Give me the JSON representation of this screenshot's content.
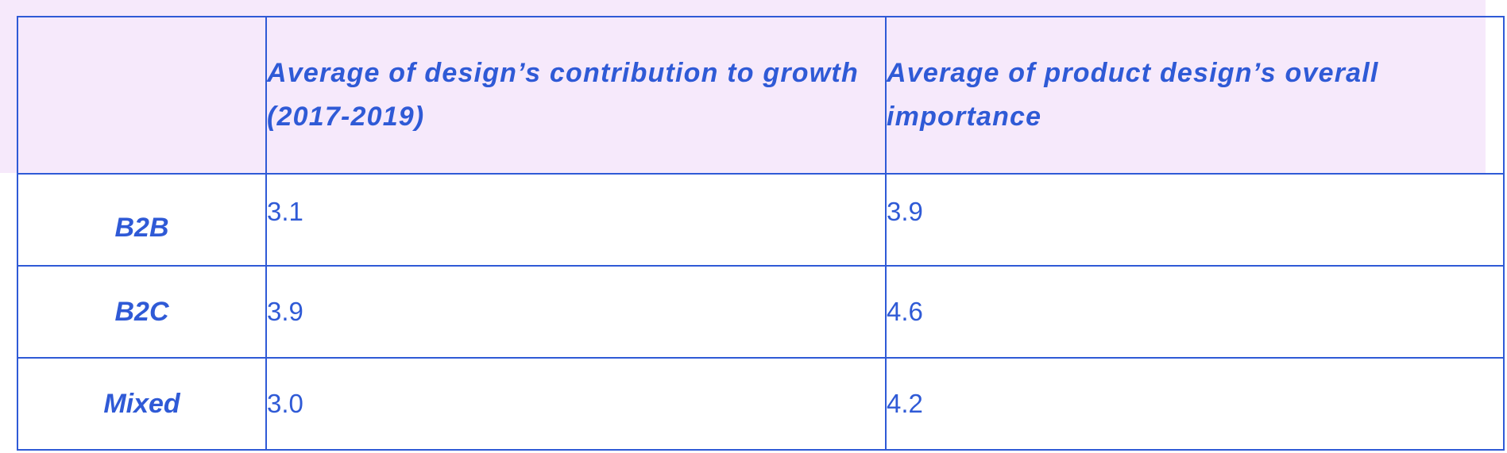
{
  "table": {
    "headers": [
      "",
      "Average of design’s contribution to growth (2017-2019)",
      "Average of product design’s overall importance"
    ],
    "rows": [
      {
        "label": "B2B",
        "values": [
          "3.1",
          "3.9"
        ]
      },
      {
        "label": "B2C",
        "values": [
          "3.9",
          "4.6"
        ]
      },
      {
        "label": "Mixed",
        "values": [
          "3.0",
          "4.2"
        ]
      }
    ]
  },
  "colors": {
    "text": "#2f5ad6",
    "border": "#2f5ad6",
    "header_background": "#f6e9fb",
    "body_background": "#ffffff"
  }
}
